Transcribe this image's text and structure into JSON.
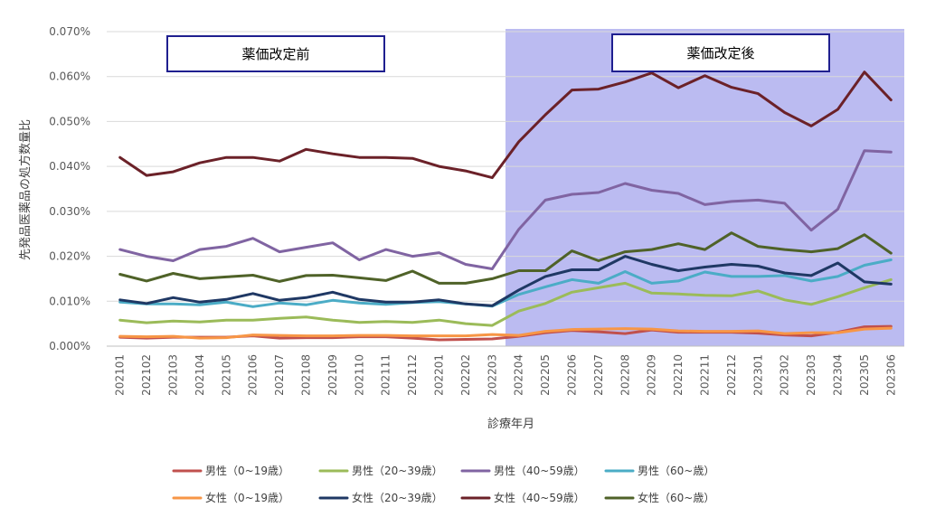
{
  "chart_data": {
    "type": "line",
    "xlabel": "診療年月",
    "ylabel": "先発品医薬品の処方数量比",
    "ylim": [
      0,
      0.07
    ],
    "yticks": [
      "0.000%",
      "0.010%",
      "0.020%",
      "0.030%",
      "0.040%",
      "0.050%",
      "0.060%",
      "0.070%"
    ],
    "categories": [
      "202101",
      "202102",
      "202103",
      "202104",
      "202105",
      "202106",
      "202107",
      "202108",
      "202109",
      "202110",
      "202111",
      "202112",
      "202201",
      "202202",
      "202203",
      "202204",
      "202205",
      "202206",
      "202207",
      "202208",
      "202209",
      "202210",
      "202211",
      "202212",
      "202301",
      "202302",
      "202303",
      "202304",
      "202305",
      "202306"
    ],
    "annotations": {
      "before_label": "薬価改定前",
      "after_label": "薬価改定後",
      "shaded_from": "202204",
      "shaded_to": "202306"
    },
    "series": [
      {
        "name": "男性（0~19歳）",
        "color": "#c0504d",
        "values": [
          0.002,
          0.0018,
          0.002,
          0.002,
          0.002,
          0.0023,
          0.0018,
          0.0019,
          0.0019,
          0.0021,
          0.0021,
          0.0018,
          0.0014,
          0.0015,
          0.0016,
          0.0022,
          0.003,
          0.0035,
          0.0032,
          0.0028,
          0.0036,
          0.0031,
          0.0031,
          0.0031,
          0.0029,
          0.0025,
          0.0023,
          0.0031,
          0.0043,
          0.0044
        ]
      },
      {
        "name": "男性（20~39歳）",
        "color": "#9bbb59",
        "values": [
          0.0058,
          0.0052,
          0.0056,
          0.0054,
          0.0058,
          0.0058,
          0.0062,
          0.0065,
          0.0058,
          0.0053,
          0.0055,
          0.0053,
          0.0058,
          0.005,
          0.0046,
          0.0078,
          0.0095,
          0.012,
          0.013,
          0.014,
          0.0118,
          0.0116,
          0.0113,
          0.0112,
          0.0123,
          0.0103,
          0.0093,
          0.011,
          0.013,
          0.0148
        ]
      },
      {
        "name": "男性（40~59歳）",
        "color": "#8064a2",
        "values": [
          0.0215,
          0.02,
          0.019,
          0.0215,
          0.0222,
          0.024,
          0.021,
          0.022,
          0.023,
          0.0192,
          0.0215,
          0.02,
          0.0208,
          0.0182,
          0.0172,
          0.026,
          0.0325,
          0.0338,
          0.0342,
          0.0362,
          0.0347,
          0.034,
          0.0315,
          0.0322,
          0.0325,
          0.0318,
          0.0258,
          0.0305,
          0.0435,
          0.0432
        ]
      },
      {
        "name": "男性（60~歳）",
        "color": "#4bacc6",
        "values": [
          0.0098,
          0.0094,
          0.0094,
          0.0092,
          0.0098,
          0.0088,
          0.0096,
          0.0092,
          0.0102,
          0.0096,
          0.0093,
          0.0097,
          0.0099,
          0.0094,
          0.0089,
          0.0115,
          0.0132,
          0.0148,
          0.014,
          0.0166,
          0.014,
          0.0145,
          0.0165,
          0.0155,
          0.0155,
          0.0157,
          0.0145,
          0.0155,
          0.018,
          0.0192
        ]
      },
      {
        "name": "女性（0~19歳）",
        "color": "#f79646",
        "values": [
          0.0022,
          0.0021,
          0.0022,
          0.0018,
          0.0019,
          0.0025,
          0.0024,
          0.0023,
          0.0023,
          0.0024,
          0.0024,
          0.0023,
          0.0023,
          0.0023,
          0.0026,
          0.0024,
          0.0033,
          0.0037,
          0.0038,
          0.0039,
          0.0038,
          0.0034,
          0.0033,
          0.0033,
          0.0034,
          0.0028,
          0.003,
          0.003,
          0.0038,
          0.004
        ]
      },
      {
        "name": "女性（20~39歳）",
        "color": "#1f3864",
        "values": [
          0.0103,
          0.0095,
          0.0108,
          0.0098,
          0.0104,
          0.0117,
          0.0102,
          0.0108,
          0.012,
          0.0104,
          0.0098,
          0.0098,
          0.0103,
          0.0094,
          0.009,
          0.0125,
          0.0155,
          0.017,
          0.017,
          0.02,
          0.0182,
          0.0168,
          0.0176,
          0.0182,
          0.0178,
          0.0163,
          0.0157,
          0.0185,
          0.0143,
          0.0138
        ]
      },
      {
        "name": "女性（40~59歳）",
        "color": "#6b2128",
        "values": [
          0.042,
          0.038,
          0.0388,
          0.0408,
          0.042,
          0.042,
          0.0412,
          0.0438,
          0.0428,
          0.042,
          0.042,
          0.0418,
          0.04,
          0.039,
          0.0375,
          0.0455,
          0.0515,
          0.057,
          0.0572,
          0.0588,
          0.0608,
          0.0575,
          0.0602,
          0.0576,
          0.0562,
          0.052,
          0.049,
          0.0527,
          0.061,
          0.0548
        ]
      },
      {
        "name": "女性（60~歳）",
        "color": "#4f6228",
        "values": [
          0.016,
          0.0145,
          0.0162,
          0.015,
          0.0154,
          0.0158,
          0.0144,
          0.0157,
          0.0158,
          0.0152,
          0.0146,
          0.0167,
          0.014,
          0.014,
          0.015,
          0.0168,
          0.0168,
          0.0212,
          0.019,
          0.021,
          0.0215,
          0.0228,
          0.0215,
          0.0252,
          0.0222,
          0.0215,
          0.021,
          0.0217,
          0.0248,
          0.0207
        ]
      }
    ]
  }
}
